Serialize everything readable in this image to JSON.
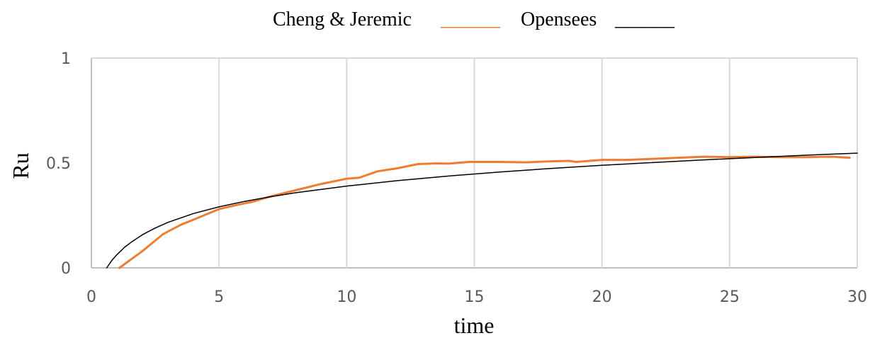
{
  "chart_data": {
    "type": "line",
    "legend": {
      "placement": "top-center",
      "entries": [
        {
          "label": "Cheng & Jeremic",
          "marker": "______",
          "color": "#ED7D31"
        },
        {
          "label": "Opensees",
          "marker": "______",
          "color": "#000000"
        }
      ]
    },
    "xlabel": "time",
    "ylabel": "Ru",
    "xlim": [
      0,
      30
    ],
    "ylim": [
      0,
      1
    ],
    "x_ticks": [
      "0",
      "5",
      "10",
      "15",
      "20",
      "25",
      "30"
    ],
    "y_ticks": [
      "0",
      "0.5",
      "1"
    ],
    "grid": "vertical",
    "series": [
      {
        "name": "Cheng & Jeremic",
        "color": "#ED7D31",
        "x": [
          1.1,
          2.0,
          2.8,
          3.5,
          4.2,
          5.0,
          5.7,
          6.3,
          7.0,
          8.0,
          9.0,
          10.0,
          10.5,
          11.2,
          12.0,
          12.8,
          13.5,
          14.0,
          14.8,
          16.0,
          17.0,
          18.0,
          18.7,
          19.0,
          20.0,
          21.0,
          22.0,
          23.0,
          24.0,
          25.0,
          26.0,
          27.0,
          28.0,
          29.0,
          29.7
        ],
        "y": [
          0.0,
          0.08,
          0.16,
          0.205,
          0.24,
          0.28,
          0.3,
          0.315,
          0.34,
          0.37,
          0.4,
          0.425,
          0.43,
          0.46,
          0.475,
          0.495,
          0.498,
          0.497,
          0.505,
          0.505,
          0.503,
          0.508,
          0.51,
          0.505,
          0.515,
          0.515,
          0.52,
          0.525,
          0.53,
          0.528,
          0.53,
          0.528,
          0.528,
          0.53,
          0.525
        ]
      },
      {
        "name": "Opensees",
        "color": "#000000",
        "x": [
          0.6,
          0.8,
          1.0,
          1.3,
          1.6,
          2.0,
          2.5,
          3.0,
          4.0,
          5.0,
          6.0,
          7.0,
          8.0,
          10.0,
          12.0,
          14.0,
          16.0,
          18.0,
          20.0,
          22.0,
          24.0,
          26.0,
          28.0,
          30.0
        ],
        "y": [
          0.0,
          0.035,
          0.063,
          0.098,
          0.126,
          0.158,
          0.19,
          0.217,
          0.259,
          0.291,
          0.317,
          0.339,
          0.358,
          0.39,
          0.416,
          0.438,
          0.457,
          0.474,
          0.489,
          0.502,
          0.515,
          0.526,
          0.537,
          0.547
        ]
      }
    ]
  }
}
